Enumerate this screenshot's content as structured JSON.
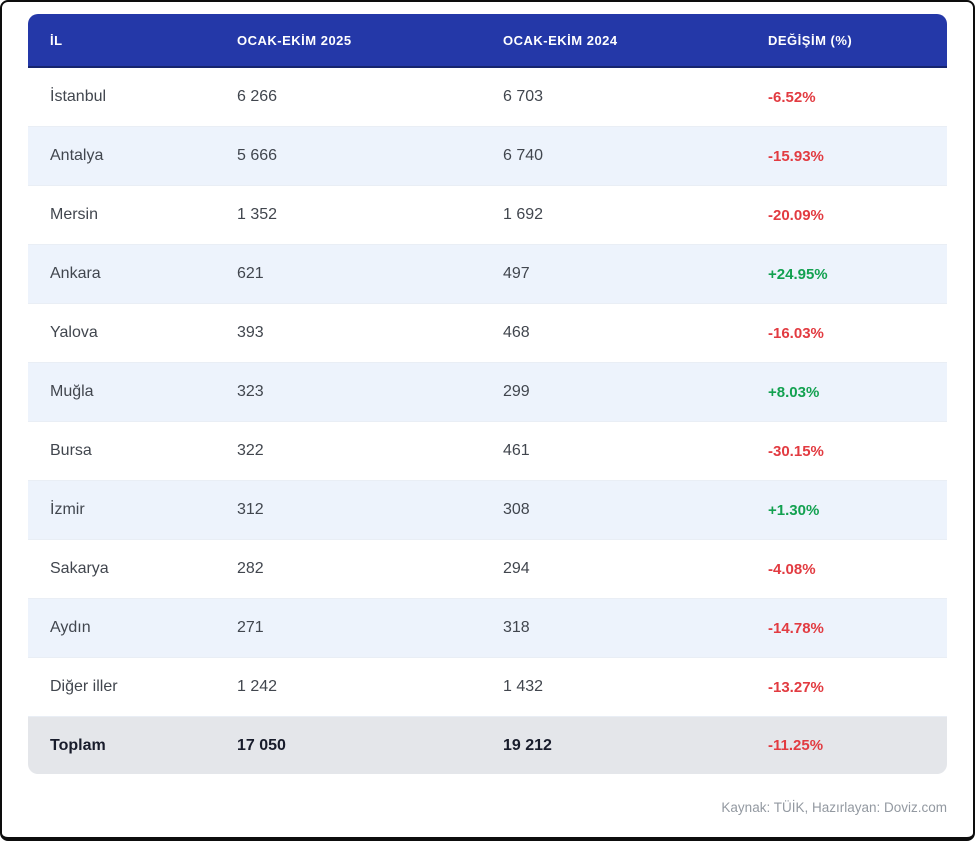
{
  "table": {
    "columns": [
      {
        "label": "İL"
      },
      {
        "label": "OCAK-EKİM 2025"
      },
      {
        "label": "OCAK-EKİM 2024"
      },
      {
        "label": "DEĞİŞİM (%)"
      }
    ],
    "rows": [
      {
        "il": "İstanbul",
        "y2025": "6 266",
        "y2024": "6 703",
        "change": "-6.52%"
      },
      {
        "il": "Antalya",
        "y2025": "5 666",
        "y2024": "6 740",
        "change": "-15.93%"
      },
      {
        "il": "Mersin",
        "y2025": "1 352",
        "y2024": "1 692",
        "change": "-20.09%"
      },
      {
        "il": "Ankara",
        "y2025": "621",
        "y2024": "497",
        "change": "+24.95%"
      },
      {
        "il": "Yalova",
        "y2025": "393",
        "y2024": "468",
        "change": "-16.03%"
      },
      {
        "il": "Muğla",
        "y2025": "323",
        "y2024": "299",
        "change": "+8.03%"
      },
      {
        "il": "Bursa",
        "y2025": "322",
        "y2024": "461",
        "change": "-30.15%"
      },
      {
        "il": "İzmir",
        "y2025": "312",
        "y2024": "308",
        "change": "+1.30%"
      },
      {
        "il": "Sakarya",
        "y2025": "282",
        "y2024": "294",
        "change": "-4.08%"
      },
      {
        "il": "Aydın",
        "y2025": "271",
        "y2024": "318",
        "change": "-14.78%"
      },
      {
        "il": "Diğer iller",
        "y2025": "1 242",
        "y2024": "1 432",
        "change": "-13.27%"
      }
    ],
    "total": {
      "il": "Toplam",
      "y2025": "17 050",
      "y2024": "19 212",
      "change": "-11.25%"
    }
  },
  "footer": {
    "source": "Kaynak: TÜİK, Hazırlayan: Doviz.com"
  },
  "colors": {
    "header_bg": "#2438a8",
    "header_edge": "#16256e",
    "alt_row_bg": "#edf3fc",
    "total_bg": "#e4e6ea",
    "body_text": "#41464e",
    "total_text": "#181c2b",
    "negative": "#e23b41",
    "positive": "#13a150",
    "footer_text": "#9399a1"
  },
  "chart_data": {
    "type": "table",
    "title": "",
    "categories": [
      "İstanbul",
      "Antalya",
      "Mersin",
      "Ankara",
      "Yalova",
      "Muğla",
      "Bursa",
      "İzmir",
      "Sakarya",
      "Aydın",
      "Diğer iller",
      "Toplam"
    ],
    "series": [
      {
        "name": "OCAK-EKİM 2025",
        "values": [
          6266,
          5666,
          1352,
          621,
          393,
          323,
          322,
          312,
          282,
          271,
          1242,
          17050
        ]
      },
      {
        "name": "OCAK-EKİM 2024",
        "values": [
          6703,
          6740,
          1692,
          497,
          468,
          299,
          461,
          308,
          294,
          318,
          1432,
          19212
        ]
      },
      {
        "name": "DEĞİŞİM (%)",
        "values": [
          -6.52,
          -15.93,
          -20.09,
          24.95,
          -16.03,
          8.03,
          -30.15,
          1.3,
          -4.08,
          -14.78,
          -13.27,
          -11.25
        ]
      }
    ]
  }
}
